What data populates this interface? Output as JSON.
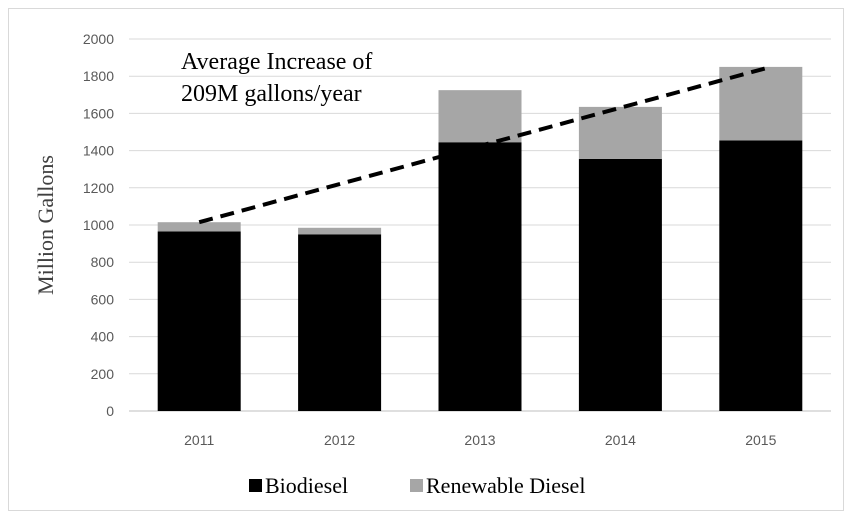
{
  "chart_data": {
    "type": "bar",
    "stacked": true,
    "categories": [
      "2011",
      "2012",
      "2013",
      "2014",
      "2015"
    ],
    "series": [
      {
        "name": "Biodiesel",
        "values": [
          965,
          950,
          1445,
          1355,
          1455
        ],
        "color": "#000000"
      },
      {
        "name": "Renewable Diesel",
        "values": [
          50,
          35,
          280,
          280,
          395
        ],
        "color": "#a6a6a6"
      }
    ],
    "trendline": {
      "style": "dashed",
      "color": "#000000",
      "start": [
        "2011",
        1015
      ],
      "end": [
        "2015",
        1850
      ]
    },
    "annotation": [
      "Average Increase of",
      "209M gallons/year"
    ],
    "title": "",
    "xlabel": "",
    "ylabel": "Million Gallons",
    "ylim": [
      0,
      2000
    ],
    "yticks": [
      0,
      200,
      400,
      600,
      800,
      1000,
      1200,
      1400,
      1600,
      1800,
      2000
    ],
    "grid": true,
    "legend_position": "bottom"
  }
}
